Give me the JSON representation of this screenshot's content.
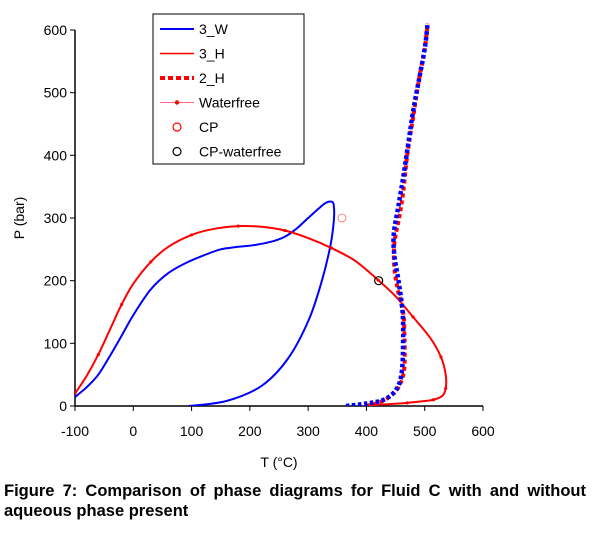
{
  "chart_data": {
    "type": "line",
    "xlabel": "T (°C)",
    "ylabel": "P (bar)",
    "xlim": [
      -100,
      600
    ],
    "ylim": [
      0,
      600
    ],
    "xticks": [
      -100,
      0,
      100,
      200,
      300,
      400,
      500,
      600
    ],
    "yticks": [
      0,
      100,
      200,
      300,
      400,
      500,
      600
    ],
    "grid": false,
    "legend_position": "top-left",
    "series": [
      {
        "name": "3_W",
        "color": "#0000ff",
        "style": "solid",
        "points": [
          [
            95,
            0
          ],
          [
            160,
            8
          ],
          [
            220,
            32
          ],
          [
            265,
            75
          ],
          [
            300,
            135
          ],
          [
            322,
            195
          ],
          [
            338,
            255
          ],
          [
            344,
            295
          ],
          [
            344,
            320
          ],
          [
            340,
            326
          ],
          [
            330,
            324
          ],
          [
            318,
            315
          ],
          [
            300,
            300
          ],
          [
            280,
            283
          ],
          [
            260,
            270
          ],
          [
            240,
            263
          ],
          [
            210,
            257
          ],
          [
            180,
            254
          ],
          [
            150,
            250
          ],
          [
            120,
            240
          ],
          [
            90,
            228
          ],
          [
            60,
            212
          ],
          [
            30,
            186
          ],
          [
            0,
            145
          ],
          [
            -20,
            112
          ],
          [
            -40,
            80
          ],
          [
            -60,
            50
          ],
          [
            -80,
            30
          ],
          [
            -95,
            18
          ],
          [
            -100,
            14
          ]
        ]
      },
      {
        "name": "3_H",
        "color": "#ff0000",
        "style": "solid",
        "points": [
          [
            -100,
            20
          ],
          [
            -80,
            48
          ],
          [
            -60,
            82
          ],
          [
            -40,
            122
          ],
          [
            -20,
            162
          ],
          [
            0,
            195
          ],
          [
            30,
            230
          ],
          [
            60,
            254
          ],
          [
            100,
            273
          ],
          [
            140,
            283
          ],
          [
            180,
            287
          ],
          [
            220,
            286
          ],
          [
            260,
            280
          ],
          [
            300,
            268
          ],
          [
            340,
            252
          ],
          [
            380,
            232
          ],
          [
            420,
            201
          ],
          [
            450,
            175
          ],
          [
            480,
            142
          ],
          [
            510,
            108
          ],
          [
            528,
            78
          ],
          [
            536,
            50
          ],
          [
            536,
            28
          ],
          [
            530,
            16
          ],
          [
            515,
            10
          ],
          [
            500,
            8
          ],
          [
            470,
            5
          ],
          [
            440,
            3
          ],
          [
            415,
            2
          ],
          [
            400,
            1
          ]
        ]
      },
      {
        "name": "2_H",
        "color": "#ff0000",
        "style": "dashed",
        "points": [
          [
            400,
            0
          ],
          [
            420,
            5
          ],
          [
            440,
            15
          ],
          [
            455,
            30
          ],
          [
            465,
            60
          ],
          [
            465,
            120
          ],
          [
            463,
            150
          ],
          [
            455,
            180
          ],
          [
            448,
            220
          ],
          [
            448,
            260
          ],
          [
            456,
            300
          ],
          [
            463,
            340
          ],
          [
            470,
            400
          ],
          [
            480,
            460
          ],
          [
            490,
            520
          ],
          [
            500,
            570
          ],
          [
            505,
            610
          ]
        ]
      },
      {
        "name": "Waterfree",
        "color": "#0000ff",
        "style": "dotted",
        "points": [
          [
            365,
            0
          ],
          [
            400,
            4
          ],
          [
            430,
            10
          ],
          [
            450,
            25
          ],
          [
            460,
            50
          ],
          [
            463,
            100
          ],
          [
            462,
            150
          ],
          [
            455,
            200
          ],
          [
            448,
            240
          ],
          [
            447,
            275
          ],
          [
            455,
            320
          ],
          [
            464,
            370
          ],
          [
            472,
            420
          ],
          [
            480,
            470
          ],
          [
            490,
            520
          ],
          [
            500,
            570
          ],
          [
            505,
            610
          ]
        ]
      }
    ],
    "critical_points": [
      {
        "name": "CP",
        "color": "#ff0000",
        "x": 358,
        "y": 300
      },
      {
        "name": "CP-waterfree",
        "color": "#000000",
        "x": 421,
        "y": 200
      }
    ]
  },
  "caption": "Figure 7: Comparison of phase diagrams for Fluid C with and without aqueous phase present"
}
